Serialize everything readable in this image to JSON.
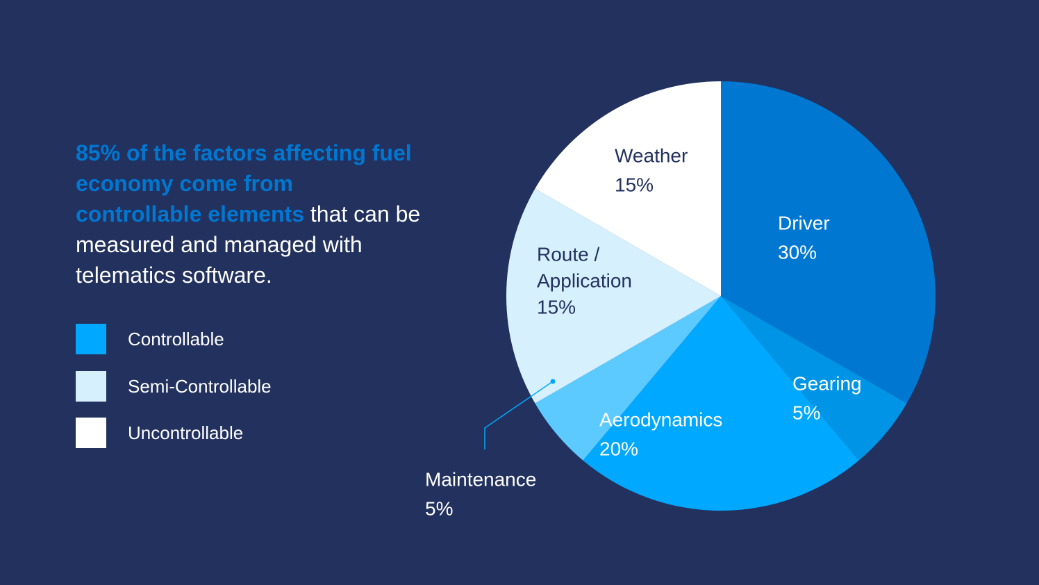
{
  "headline": {
    "highlight": "85% of the factors affecting fuel economy come from controllable elements",
    "rest": " that can be measured and managed with telematics software."
  },
  "legend": [
    {
      "label": "Controllable",
      "color": "#00a8ff"
    },
    {
      "label": "Semi-Controllable",
      "color": "#d6f0fd"
    },
    {
      "label": "Uncontrollable",
      "color": "#ffffff"
    }
  ],
  "chart_data": {
    "type": "pie",
    "slices": [
      {
        "name": "Driver",
        "value": 30,
        "value_label": "30%",
        "color": "#0077d1",
        "label_color": "#ffffff"
      },
      {
        "name": "Gearing",
        "value": 5,
        "value_label": "5%",
        "color": "#0094e6",
        "label_color": "#ffffff"
      },
      {
        "name": "Aerodynamics",
        "value": 20,
        "value_label": "20%",
        "color": "#00a8ff",
        "label_color": "#ffffff"
      },
      {
        "name": "Maintenance",
        "value": 5,
        "value_label": "5%",
        "color": "#5ccaff",
        "label_color": "#ffffff"
      },
      {
        "name": "Route /|Application",
        "value": 15,
        "value_label": "15%",
        "color": "#d6f0fd",
        "label_color": "#22315e"
      },
      {
        "name": "Weather",
        "value": 15,
        "value_label": "15%",
        "color": "#ffffff",
        "label_color": "#22315e"
      }
    ]
  }
}
